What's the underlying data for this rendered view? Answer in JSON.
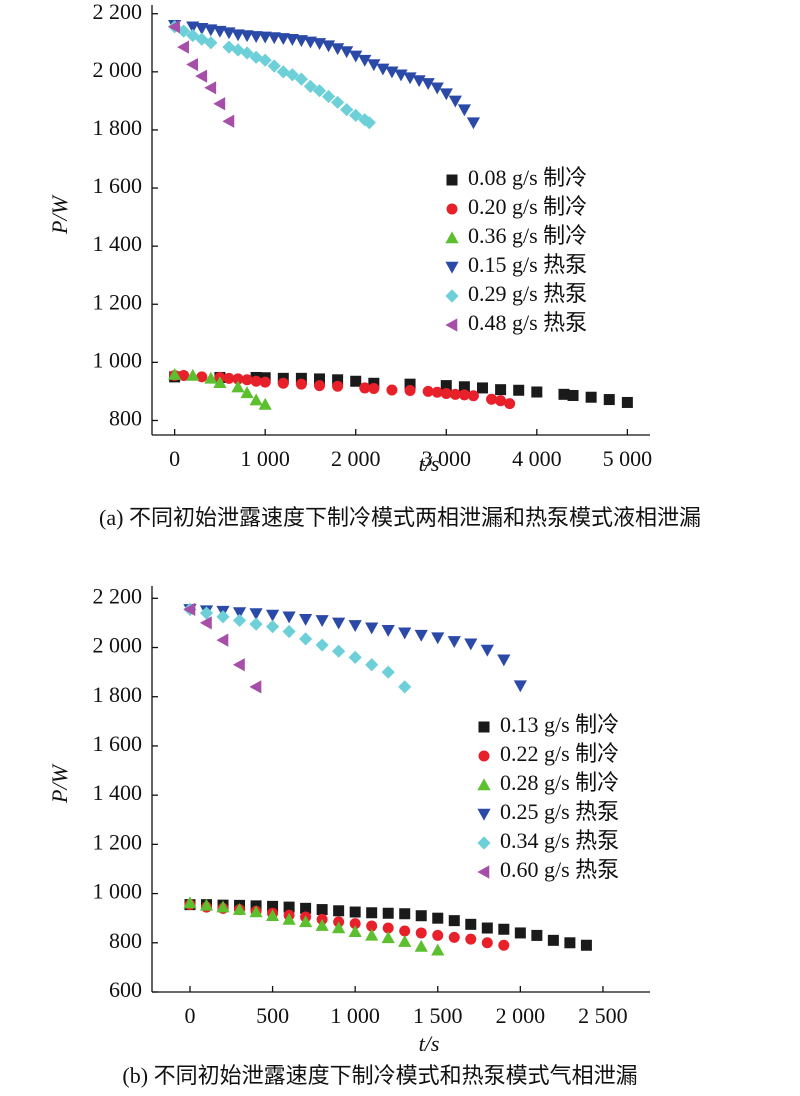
{
  "chart_data": [
    {
      "type": "scatter",
      "xlabel": "t/s",
      "ylabel": "P/W",
      "caption": "(a) 不同初始泄露速度下制冷模式两相泄漏和热泵模式液相泄漏",
      "xlim": [
        -250,
        5250
      ],
      "ylim": [
        750,
        2230
      ],
      "xticks": [
        0,
        {
          "value": 1000,
          "label": "1 000"
        },
        {
          "value": 2000,
          "label": "2 000"
        },
        {
          "value": 3000,
          "label": "3 000"
        },
        {
          "value": 4000,
          "label": "4 000"
        },
        {
          "value": 5000,
          "label": "5 000"
        }
      ],
      "yticks": [
        800,
        {
          "value": 1000,
          "label": "1 000"
        },
        {
          "value": 1200,
          "label": "1 200"
        },
        {
          "value": 1400,
          "label": "1 400"
        },
        {
          "value": 1600,
          "label": "1 600"
        },
        {
          "value": 1800,
          "label": "1 800"
        },
        {
          "value": 2000,
          "label": "2 000"
        },
        {
          "value": 2200,
          "label": "2 200"
        }
      ],
      "legend": "right",
      "series": [
        {
          "name": "0.08 g/s 制冷",
          "color": "#1a1a1a",
          "marker": "square",
          "x": [
            0,
            500,
            900,
            1000,
            1200,
            1400,
            1600,
            1800,
            2000,
            2200,
            2600,
            3000,
            3200,
            3400,
            3600,
            3800,
            4000,
            4300,
            4400,
            4600,
            4800,
            5000
          ],
          "values": [
            950,
            948,
            948,
            947,
            945,
            945,
            943,
            940,
            935,
            928,
            925,
            920,
            916,
            912,
            906,
            904,
            898,
            890,
            886,
            880,
            872,
            862
          ]
        },
        {
          "name": "0.20 g/s 制冷",
          "color": "#e8202a",
          "marker": "circle",
          "x": [
            0,
            100,
            300,
            500,
            600,
            700,
            800,
            900,
            1000,
            1200,
            1400,
            1600,
            1800,
            2100,
            2200,
            2400,
            2600,
            2800,
            2900,
            3000,
            3100,
            3200,
            3300,
            3500,
            3600,
            3700
          ],
          "values": [
            955,
            955,
            950,
            948,
            945,
            943,
            940,
            935,
            932,
            928,
            925,
            920,
            918,
            912,
            910,
            905,
            903,
            900,
            897,
            893,
            890,
            888,
            885,
            873,
            868,
            858
          ]
        },
        {
          "name": "0.36 g/s 制冷",
          "color": "#5bbf2e",
          "marker": "triangle-up",
          "x": [
            0,
            200,
            400,
            500,
            700,
            800,
            900,
            1000
          ],
          "values": [
            958,
            955,
            945,
            930,
            915,
            895,
            870,
            855
          ]
        },
        {
          "name": "0.15 g/s 热泵",
          "color": "#2b4aa8",
          "marker": "triangle-down",
          "x": [
            0,
            200,
            300,
            400,
            500,
            600,
            700,
            800,
            900,
            1000,
            1100,
            1200,
            1300,
            1400,
            1500,
            1600,
            1700,
            1800,
            1900,
            2000,
            2100,
            2200,
            2300,
            2400,
            2500,
            2600,
            2700,
            2800,
            2900,
            3000,
            3100,
            3200,
            3300
          ],
          "values": [
            2160,
            2155,
            2150,
            2145,
            2140,
            2135,
            2128,
            2125,
            2122,
            2120,
            2118,
            2115,
            2112,
            2108,
            2103,
            2098,
            2090,
            2080,
            2070,
            2055,
            2040,
            2025,
            2010,
            2000,
            1990,
            1980,
            1970,
            1960,
            1945,
            1925,
            1900,
            1870,
            1825
          ]
        },
        {
          "name": "0.29 g/s 热泵",
          "color": "#6dd0d8",
          "marker": "diamond",
          "x": [
            0,
            100,
            200,
            300,
            400,
            600,
            700,
            800,
            900,
            1000,
            1100,
            1200,
            1300,
            1400,
            1500,
            1600,
            1700,
            1800,
            1900,
            2000,
            2100,
            2150
          ],
          "values": [
            2155,
            2140,
            2125,
            2112,
            2100,
            2085,
            2075,
            2065,
            2050,
            2040,
            2020,
            2000,
            1990,
            1975,
            1950,
            1935,
            1915,
            1895,
            1870,
            1850,
            1835,
            1825
          ]
        },
        {
          "name": "0.48 g/s 热泵",
          "color": "#a64ea8",
          "marker": "triangle-left",
          "x": [
            0,
            100,
            200,
            300,
            400,
            500,
            600
          ],
          "values": [
            2155,
            2085,
            2025,
            1985,
            1945,
            1890,
            1830
          ]
        }
      ]
    },
    {
      "type": "scatter",
      "xlabel": "t/s",
      "ylabel": "P/W",
      "caption": "(b) 不同初始泄露速度下制冷模式和热泵模式气相泄漏",
      "xlim": [
        -230,
        2785
      ],
      "ylim": [
        600,
        2250
      ],
      "xticks": [
        0,
        500,
        {
          "value": 1000,
          "label": "1 000"
        },
        {
          "value": 1500,
          "label": "1 500"
        },
        {
          "value": 2000,
          "label": "2 000"
        },
        {
          "value": 2500,
          "label": "2 500"
        }
      ],
      "yticks": [
        600,
        800,
        {
          "value": 1000,
          "label": "1 000"
        },
        {
          "value": 1200,
          "label": "1 200"
        },
        {
          "value": 1400,
          "label": "1 400"
        },
        {
          "value": 1600,
          "label": "1 600"
        },
        {
          "value": 1800,
          "label": "1 800"
        },
        {
          "value": 2000,
          "label": "2 000"
        },
        {
          "value": 2200,
          "label": "2 200"
        }
      ],
      "legend": "right",
      "series": [
        {
          "name": "0.13 g/s 制冷",
          "color": "#1a1a1a",
          "marker": "square",
          "x": [
            0,
            100,
            200,
            300,
            400,
            500,
            600,
            700,
            800,
            900,
            1000,
            1100,
            1200,
            1300,
            1400,
            1500,
            1600,
            1700,
            1800,
            1900,
            2000,
            2100,
            2200,
            2300,
            2400
          ],
          "values": [
            955,
            955,
            953,
            952,
            950,
            948,
            945,
            940,
            935,
            930,
            925,
            922,
            920,
            918,
            910,
            900,
            890,
            875,
            860,
            855,
            840,
            830,
            810,
            800,
            790
          ]
        },
        {
          "name": "0.22 g/s 制冷",
          "color": "#e8202a",
          "marker": "circle",
          "x": [
            0,
            100,
            200,
            300,
            400,
            500,
            600,
            700,
            800,
            900,
            1000,
            1100,
            1200,
            1300,
            1400,
            1500,
            1600,
            1700,
            1800,
            1900
          ],
          "values": [
            955,
            945,
            940,
            935,
            928,
            920,
            912,
            905,
            895,
            885,
            878,
            868,
            860,
            848,
            840,
            830,
            822,
            815,
            800,
            790
          ]
        },
        {
          "name": "0.28 g/s 制冷",
          "color": "#5bbf2e",
          "marker": "triangle-up",
          "x": [
            0,
            100,
            200,
            300,
            400,
            500,
            600,
            700,
            800,
            900,
            1000,
            1100,
            1200,
            1300,
            1400,
            1500
          ],
          "values": [
            962,
            952,
            945,
            935,
            925,
            910,
            895,
            885,
            870,
            860,
            845,
            830,
            820,
            805,
            785,
            770
          ]
        },
        {
          "name": "0.25 g/s 热泵",
          "color": "#2b4aa8",
          "marker": "triangle-down",
          "x": [
            0,
            100,
            200,
            300,
            400,
            500,
            600,
            700,
            800,
            900,
            1000,
            1100,
            1200,
            1300,
            1400,
            1500,
            1600,
            1700,
            1800,
            1900,
            2000
          ],
          "values": [
            2155,
            2150,
            2148,
            2142,
            2138,
            2132,
            2125,
            2115,
            2110,
            2100,
            2090,
            2080,
            2070,
            2060,
            2050,
            2040,
            2025,
            2015,
            1990,
            1950,
            1845
          ]
        },
        {
          "name": "0.34 g/s 热泵",
          "color": "#6dd0d8",
          "marker": "diamond",
          "x": [
            0,
            100,
            200,
            300,
            400,
            500,
            600,
            700,
            800,
            900,
            1000,
            1100,
            1200,
            1300
          ],
          "values": [
            2155,
            2140,
            2125,
            2110,
            2095,
            2085,
            2065,
            2035,
            2010,
            1985,
            1960,
            1930,
            1900,
            1840
          ]
        },
        {
          "name": "0.60 g/s 热泵",
          "color": "#a64ea8",
          "marker": "triangle-left",
          "x": [
            0,
            100,
            200,
            300,
            400
          ],
          "values": [
            2155,
            2100,
            2030,
            1930,
            1840
          ]
        }
      ]
    }
  ]
}
